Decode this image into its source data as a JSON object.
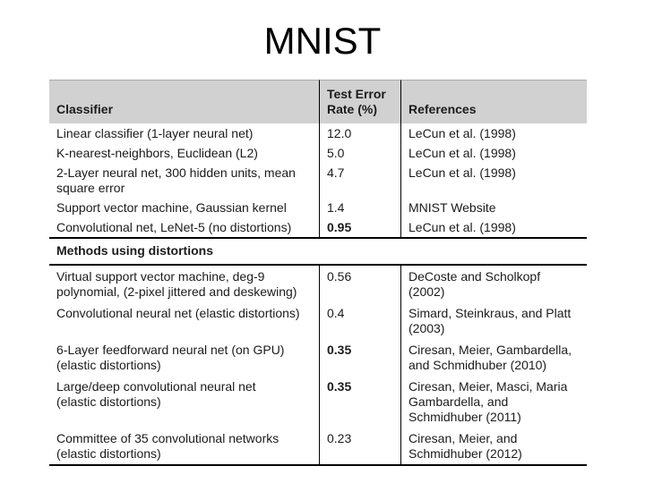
{
  "title": "MNIST",
  "colors": {
    "header_bg": "#d1d1d1",
    "rule": "#000000",
    "divider": "#000000",
    "text": "#1b1b1b",
    "title_color": "#000000",
    "slide_bg": "#ffffff"
  },
  "table": {
    "header": {
      "classifier": "Classifier",
      "rate": "Test Error\nRate (%)",
      "references": "References"
    },
    "section1": {
      "rows": [
        {
          "classifier": "Linear classifier (1-layer neural net)",
          "rate": "12.0",
          "rate_bold": false,
          "references": "LeCun et al. (1998)"
        },
        {
          "classifier": "K-nearest-neighbors, Euclidean (L2)",
          "rate": "5.0",
          "rate_bold": false,
          "references": "LeCun et al. (1998)"
        },
        {
          "classifier": "2-Layer neural net, 300 hidden units, mean\nsquare error",
          "rate": "4.7",
          "rate_bold": false,
          "references": "LeCun et al. (1998)"
        },
        {
          "classifier": "Support vector machine, Gaussian kernel",
          "rate": "1.4",
          "rate_bold": false,
          "references": "MNIST Website"
        },
        {
          "classifier": "Convolutional net, LeNet-5 (no distortions)",
          "rate": "0.95",
          "rate_bold": true,
          "references": "LeCun et al. (1998)"
        }
      ]
    },
    "section2": {
      "label": "Methods using distortions",
      "rows": [
        {
          "classifier": "Virtual support vector machine, deg-9\npolynomial, (2-pixel jittered and deskewing)",
          "rate": "0.56",
          "rate_bold": false,
          "references": "DeCoste and Scholkopf\n(2002)"
        },
        {
          "classifier": "Convolutional neural net (elastic distortions)",
          "rate": "0.4",
          "rate_bold": false,
          "references": "Simard, Steinkraus, and Platt\n(2003)"
        },
        {
          "classifier": "6-Layer feedforward neural net (on GPU)\n(elastic distortions)",
          "rate": "0.35",
          "rate_bold": true,
          "references": "Ciresan, Meier, Gambardella,\nand Schmidhuber (2010)"
        },
        {
          "classifier": "Large/deep convolutional neural net\n(elastic distortions)",
          "rate": "0.35",
          "rate_bold": true,
          "references": "Ciresan, Meier, Masci, Maria\nGambardella, and\nSchmidhuber (2011)"
        },
        {
          "classifier": "Committee of 35 convolutional networks\n(elastic distortions)",
          "rate": "0.23",
          "rate_bold": false,
          "references": "Ciresan, Meier, and\nSchmidhuber (2012)"
        }
      ]
    }
  }
}
